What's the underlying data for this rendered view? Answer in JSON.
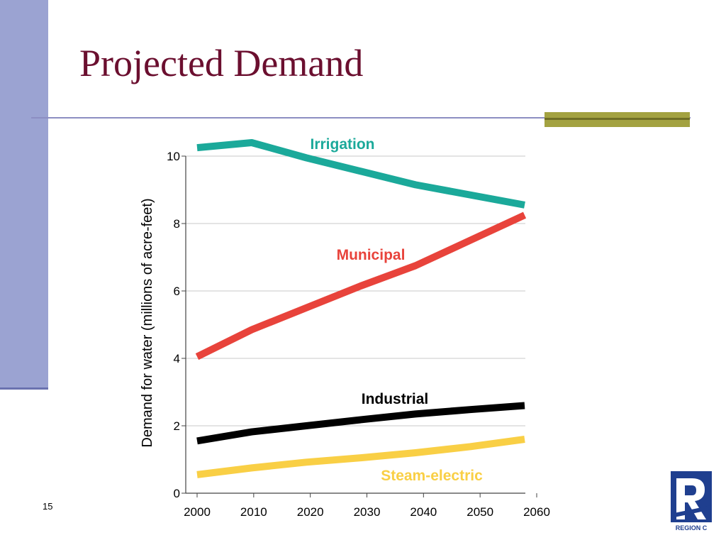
{
  "slide": {
    "title": "Projected Demand",
    "page_number": "15",
    "logo_text": "Region C"
  },
  "colors": {
    "sidebar": "#9ba3d2",
    "title": "#6b0f2f",
    "rule": "#8c8ec2",
    "accent": "#a3a241"
  },
  "chart_data": {
    "type": "line",
    "title": "",
    "xlabel": "",
    "ylabel": "Demand for water (millions of acre-feet)",
    "x": [
      2000,
      2010,
      2020,
      2030,
      2040,
      2050,
      2060
    ],
    "xlim": [
      2000,
      2060
    ],
    "ylim": [
      0,
      10
    ],
    "yticks": [
      0,
      2,
      4,
      6,
      8,
      10
    ],
    "grid": "horizontal",
    "legend": "inline labels",
    "series": [
      {
        "name": "Irrigation",
        "color": "#1ba99a",
        "values": [
          10.25,
          10.4,
          9.95,
          9.55,
          9.15,
          8.85,
          8.55
        ]
      },
      {
        "name": "Municipal",
        "color": "#e8433b",
        "values": [
          4.05,
          4.85,
          5.5,
          6.15,
          6.75,
          7.5,
          8.25
        ]
      },
      {
        "name": "Industrial",
        "color": "#000000",
        "values": [
          1.55,
          1.82,
          2.0,
          2.18,
          2.35,
          2.48,
          2.6
        ]
      },
      {
        "name": "Steam-electric",
        "color": "#f9cf45",
        "values": [
          0.55,
          0.75,
          0.92,
          1.05,
          1.2,
          1.38,
          1.6
        ]
      }
    ]
  }
}
